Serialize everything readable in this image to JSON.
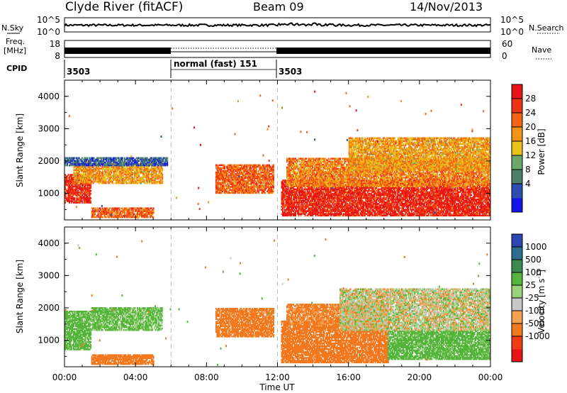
{
  "header": {
    "station": "Clyde River (fitACF)",
    "beam": "Beam 09",
    "date": "14/Nov/2013"
  },
  "noise_panel": {
    "left_label": "N.Sky",
    "left_ticks": [
      "10^5",
      "10^0"
    ],
    "right_label": "N.Search",
    "right_ticks": [
      "10^5",
      "10^0"
    ]
  },
  "freq_panel": {
    "left_label_line1": "Freq.",
    "left_label_line2": "[MHz]",
    "left_ticks": [
      "18",
      "8"
    ],
    "right_label": "Nave",
    "right_ticks": [
      "60",
      "0"
    ]
  },
  "cpid": {
    "label": "CPID",
    "segments": [
      {
        "text": "3503",
        "start_hour": 0
      },
      {
        "text": "normal (fast) 151",
        "start_hour": 6
      },
      {
        "text": "3503",
        "start_hour": 12
      }
    ]
  },
  "axes": {
    "ylabel": "Slant Range [km]",
    "xlabel": "Time UT",
    "xticks": [
      "00:00",
      "04:00",
      "08:00",
      "12:00",
      "16:00",
      "20:00",
      "00:00"
    ],
    "yticks": [
      "1000",
      "2000",
      "3000",
      "4000"
    ]
  },
  "colors": {
    "power": [
      "#1414e6",
      "#2a4fb0",
      "#4d7f68",
      "#6aa86a",
      "#e6c21a",
      "#f29418",
      "#f26414",
      "#f03214",
      "#e61414"
    ],
    "velocity": [
      "#e61414",
      "#f03c14",
      "#f2781e",
      "#f5a050",
      "#c8c8c8",
      "#9ad27a",
      "#54b43c",
      "#3c8a50",
      "#2a6e8c",
      "#2c46b4"
    ]
  },
  "power_colorbar": {
    "label": "Power [dB]",
    "ticks": [
      "28",
      "24",
      "20",
      "16",
      "12",
      "8",
      "4"
    ]
  },
  "velocity_colorbar": {
    "label": "Velocity [m s",
    "label_sup": "-1",
    "label_end": "]",
    "ticks": [
      "1000",
      "500",
      "100",
      "25",
      "-25",
      "-100",
      "-500",
      "-1000"
    ]
  },
  "chart_data": {
    "type": "heatmap",
    "x_range_hours": [
      0,
      24
    ],
    "y_range_km": [
      180,
      4500
    ],
    "mode_change_hours": [
      6,
      12
    ],
    "power_scale_db": [
      0,
      30
    ],
    "velocity_scale_ms": [
      -1200,
      1200
    ],
    "power_regions": [
      {
        "t0": 0,
        "t1": 1.5,
        "r0": 700,
        "r1": 1600,
        "value": 26
      },
      {
        "t0": 0.5,
        "t1": 5.5,
        "r0": 1300,
        "r1": 1900,
        "value": 18
      },
      {
        "t0": 0,
        "t1": 5.8,
        "r0": 1850,
        "r1": 2100,
        "value": 6
      },
      {
        "t0": 1.5,
        "t1": 5,
        "r0": 250,
        "r1": 550,
        "value": 22
      },
      {
        "t0": 8.5,
        "t1": 11.8,
        "r0": 1000,
        "r1": 1900,
        "value": 22
      },
      {
        "t0": 12.2,
        "t1": 24,
        "r0": 300,
        "r1": 1400,
        "value": 27
      },
      {
        "t0": 12.5,
        "t1": 24,
        "r0": 1200,
        "r1": 2100,
        "value": 20
      },
      {
        "t0": 16,
        "t1": 24,
        "r0": 1700,
        "r1": 2700,
        "value": 18
      }
    ],
    "velocity_regions": [
      {
        "t0": 0,
        "t1": 1.5,
        "r0": 700,
        "r1": 1900,
        "value": 200
      },
      {
        "t0": 1.5,
        "t1": 5.5,
        "r0": 1300,
        "r1": 2000,
        "value": 150
      },
      {
        "t0": 1.5,
        "t1": 5,
        "r0": 250,
        "r1": 550,
        "value": -300
      },
      {
        "t0": 8.5,
        "t1": 11.8,
        "r0": 1100,
        "r1": 2000,
        "value": -200
      },
      {
        "t0": 12.2,
        "t1": 18.2,
        "r0": 300,
        "r1": 1600,
        "value": -250
      },
      {
        "t0": 12.5,
        "t1": 18.2,
        "r0": 1500,
        "r1": 2100,
        "value": -150
      },
      {
        "t0": 18.2,
        "t1": 24,
        "r0": 400,
        "r1": 1300,
        "value": 200
      },
      {
        "t0": 15.5,
        "t1": 24,
        "r0": 1300,
        "r1": 2600,
        "value": 10
      }
    ]
  }
}
